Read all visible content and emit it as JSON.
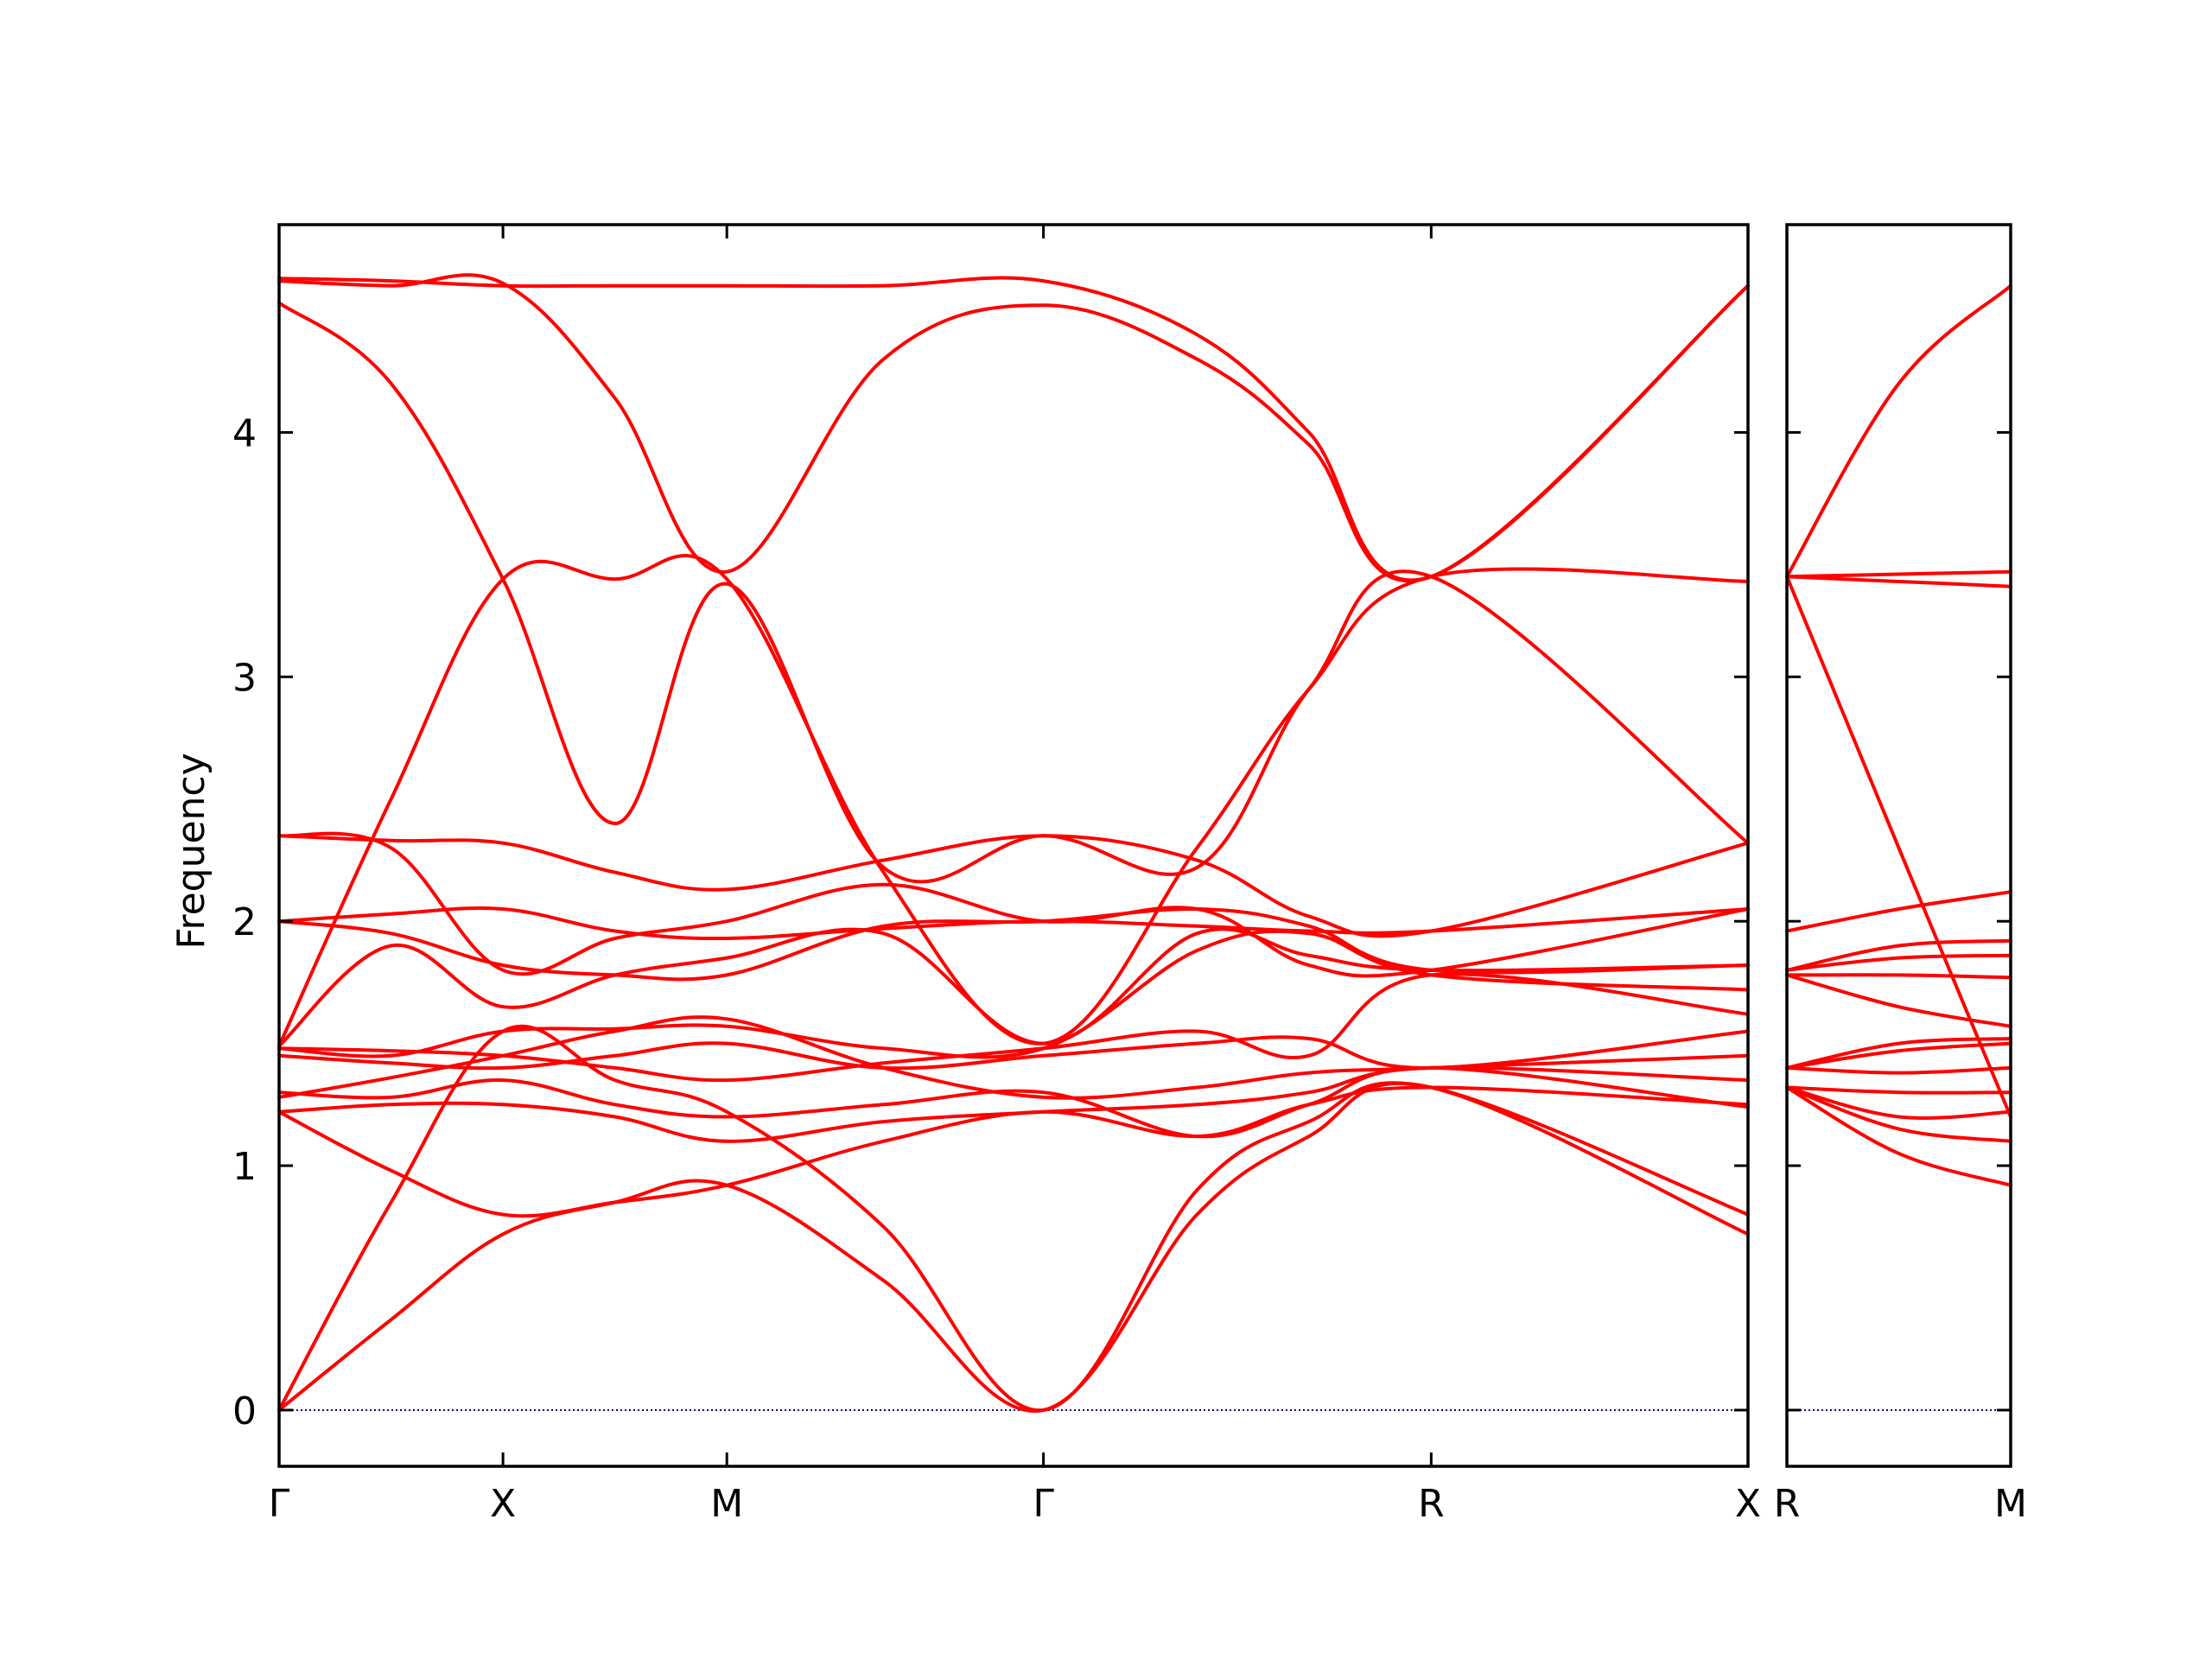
{
  "chart_data": {
    "type": "line",
    "ylabel": "Frequency",
    "ylim": [
      -0.23,
      4.85
    ],
    "yticks": [
      {
        "value": 0,
        "label": "0"
      },
      {
        "value": 1,
        "label": "1"
      },
      {
        "value": 2,
        "label": "2"
      },
      {
        "value": 3,
        "label": "3"
      },
      {
        "value": 4,
        "label": "4"
      }
    ],
    "line_color": "#ff0000",
    "zero_line_color": "#00008b",
    "segments": [
      {
        "labels": [
          "Γ",
          "X",
          "M",
          "Γ",
          "R"
        ],
        "end_label": "X",
        "positions": [
          0,
          1,
          2,
          3.414,
          5.146,
          6.561
        ],
        "branch_labels": {
          "x_label_in_panel": "Γ"
        }
      },
      {
        "labels": [
          "R"
        ],
        "end_label": "M",
        "positions": [
          0,
          1
        ]
      }
    ],
    "panels": [
      {
        "name": "main-panel",
        "x_points": [
          0,
          1,
          2,
          3.414,
          5.146,
          6.561
        ],
        "x_tick_labels": [
          "Γ",
          "X",
          "M",
          "Γ",
          "R",
          "X"
        ],
        "bands": [
          [
            [
              0,
              0
            ],
            [
              0.5,
              0.37
            ],
            [
              1,
              0.72
            ],
            [
              1.5,
              0.85
            ],
            [
              2,
              0.92
            ],
            [
              2.7,
              0.53
            ],
            [
              3.414,
              0
            ],
            [
              4.1,
              0.8
            ],
            [
              4.6,
              1.12
            ],
            [
              5.146,
              1.32
            ],
            [
              6.561,
              0.72
            ]
          ],
          [
            [
              0,
              0
            ],
            [
              0.5,
              0.85
            ],
            [
              1,
              1.55
            ],
            [
              1.5,
              1.35
            ],
            [
              2,
              1.22
            ],
            [
              2.7,
              0.75
            ],
            [
              3.414,
              0
            ],
            [
              4.1,
              0.9
            ],
            [
              4.6,
              1.18
            ],
            [
              5.146,
              1.32
            ],
            [
              6.561,
              0.8
            ]
          ],
          [
            [
              0,
              1.22
            ],
            [
              0.5,
              0.98
            ],
            [
              1,
              0.8
            ],
            [
              1.5,
              0.85
            ],
            [
              2,
              0.92
            ],
            [
              2.7,
              1.1
            ],
            [
              3.414,
              1.22
            ],
            [
              4.1,
              1.12
            ],
            [
              4.6,
              1.25
            ],
            [
              5.146,
              1.32
            ],
            [
              6.561,
              1.25
            ]
          ],
          [
            [
              0,
              1.22
            ],
            [
              0.5,
              1.25
            ],
            [
              1,
              1.25
            ],
            [
              1.5,
              1.2
            ],
            [
              2,
              1.1
            ],
            [
              2.7,
              1.18
            ],
            [
              3.414,
              1.22
            ],
            [
              4.1,
              1.25
            ],
            [
              4.6,
              1.3
            ],
            [
              5.146,
              1.4
            ],
            [
              6.561,
              1.35
            ]
          ],
          [
            [
              0,
              1.28
            ],
            [
              0.5,
              1.36
            ],
            [
              1,
              1.45
            ],
            [
              1.5,
              1.55
            ],
            [
              2,
              1.6
            ],
            [
              2.7,
              1.4
            ],
            [
              3.414,
              1.28
            ],
            [
              4.1,
              1.32
            ],
            [
              4.6,
              1.38
            ],
            [
              5.146,
              1.4
            ],
            [
              6.561,
              1.45
            ]
          ],
          [
            [
              0,
              1.3
            ],
            [
              0.5,
              1.28
            ],
            [
              1,
              1.35
            ],
            [
              1.5,
              1.25
            ],
            [
              2,
              1.2
            ],
            [
              2.7,
              1.25
            ],
            [
              3.414,
              1.3
            ],
            [
              4.1,
              1.12
            ],
            [
              4.6,
              1.25
            ],
            [
              5.146,
              1.4
            ],
            [
              6.561,
              1.24
            ]
          ],
          [
            [
              0,
              1.45
            ],
            [
              0.5,
              1.42
            ],
            [
              1,
              1.4
            ],
            [
              1.5,
              1.45
            ],
            [
              2,
              1.5
            ],
            [
              2.7,
              1.4
            ],
            [
              3.414,
              1.45
            ],
            [
              4.1,
              1.5
            ],
            [
              4.6,
              1.52
            ],
            [
              5.146,
              1.4
            ],
            [
              6.561,
              1.55
            ]
          ],
          [
            [
              0,
              1.48
            ],
            [
              0.5,
              1.47
            ],
            [
              1,
              1.45
            ],
            [
              1.5,
              1.4
            ],
            [
              2,
              1.35
            ],
            [
              2.7,
              1.42
            ],
            [
              3.414,
              1.48
            ],
            [
              4.1,
              1.55
            ],
            [
              4.6,
              1.45
            ],
            [
              5.146,
              1.78
            ],
            [
              6.561,
              1.62
            ]
          ],
          [
            [
              0,
              1.48
            ],
            [
              0.5,
              1.45
            ],
            [
              1,
              1.55
            ],
            [
              1.5,
              1.56
            ],
            [
              2,
              1.57
            ],
            [
              2.7,
              1.48
            ],
            [
              3.414,
              1.48
            ],
            [
              4.1,
              1.88
            ],
            [
              4.6,
              1.95
            ],
            [
              5.146,
              1.78
            ],
            [
              6.561,
              1.72
            ]
          ],
          [
            [
              0,
              1.49
            ],
            [
              0.5,
              1.9
            ],
            [
              1,
              1.65
            ],
            [
              1.5,
              1.78
            ],
            [
              2,
              1.85
            ],
            [
              2.7,
              1.95
            ],
            [
              3.414,
              1.5
            ],
            [
              4.1,
              1.95
            ],
            [
              4.6,
              1.86
            ],
            [
              5.146,
              1.8
            ],
            [
              6.561,
              1.82
            ]
          ],
          [
            [
              0,
              2.0
            ],
            [
              0.5,
              1.95
            ],
            [
              1,
              1.82
            ],
            [
              1.5,
              1.78
            ],
            [
              2,
              1.78
            ],
            [
              2.7,
              1.98
            ],
            [
              3.414,
              2.0
            ],
            [
              4.1,
              2.05
            ],
            [
              4.6,
              1.98
            ],
            [
              5.146,
              1.8
            ],
            [
              6.561,
              1.82
            ]
          ],
          [
            [
              0,
              2.0
            ],
            [
              0.5,
              2.03
            ],
            [
              1,
              2.05
            ],
            [
              1.5,
              1.96
            ],
            [
              2,
              1.93
            ],
            [
              2.7,
              1.97
            ],
            [
              3.414,
              2.0
            ],
            [
              4.1,
              1.98
            ],
            [
              4.6,
              1.96
            ],
            [
              5.146,
              1.96
            ],
            [
              6.561,
              2.05
            ]
          ],
          [
            [
              0,
              2.35
            ],
            [
              0.5,
              2.3
            ],
            [
              1,
              1.8
            ],
            [
              1.5,
              1.93
            ],
            [
              2,
              2.0
            ],
            [
              2.7,
              2.15
            ],
            [
              3.414,
              2.0
            ],
            [
              4.1,
              2.05
            ],
            [
              4.6,
              1.82
            ],
            [
              5.146,
              1.8
            ],
            [
              6.561,
              2.05
            ]
          ],
          [
            [
              0,
              2.35
            ],
            [
              0.5,
              2.33
            ],
            [
              1,
              2.32
            ],
            [
              1.5,
              2.2
            ],
            [
              2,
              2.13
            ],
            [
              2.7,
              2.25
            ],
            [
              3.414,
              2.35
            ],
            [
              4.1,
              2.25
            ],
            [
              4.6,
              2.02
            ],
            [
              5.146,
              1.96
            ],
            [
              6.561,
              2.32
            ]
          ],
          [
            [
              0,
              1.49
            ],
            [
              0.5,
              2.5
            ],
            [
              1,
              3.4
            ],
            [
              1.5,
              3.4
            ],
            [
              2,
              3.4
            ],
            [
              2.7,
              2.2
            ],
            [
              3.414,
              1.5
            ],
            [
              4.1,
              2.3
            ],
            [
              4.6,
              2.95
            ],
            [
              5.146,
              3.41
            ],
            [
              6.561,
              3.39
            ]
          ],
          [
            [
              0,
              4.53
            ],
            [
              0.5,
              4.2
            ],
            [
              1,
              3.4
            ],
            [
              1.5,
              2.4
            ],
            [
              2,
              3.38
            ],
            [
              2.7,
              2.22
            ],
            [
              3.414,
              2.35
            ],
            [
              4.1,
              2.22
            ],
            [
              4.6,
              2.95
            ],
            [
              5.146,
              3.41
            ],
            [
              6.561,
              2.32
            ]
          ],
          [
            [
              0,
              4.62
            ],
            [
              0.5,
              4.6
            ],
            [
              1,
              4.61
            ],
            [
              1.5,
              4.14
            ],
            [
              2,
              3.43
            ],
            [
              2.7,
              4.3
            ],
            [
              3.414,
              4.52
            ],
            [
              4.1,
              4.3
            ],
            [
              4.6,
              3.95
            ],
            [
              5.146,
              3.41
            ],
            [
              6.561,
              4.6
            ]
          ],
          [
            [
              0,
              4.63
            ],
            [
              0.5,
              4.62
            ],
            [
              1,
              4.6
            ],
            [
              1.5,
              4.6
            ],
            [
              2,
              4.6
            ],
            [
              2.7,
              4.6
            ],
            [
              3.414,
              4.62
            ],
            [
              4.1,
              4.4
            ],
            [
              4.6,
              4.0
            ],
            [
              5.146,
              3.41
            ],
            [
              6.561,
              4.6
            ]
          ]
        ]
      },
      {
        "name": "side-panel",
        "x_points": [
          0,
          1
        ],
        "x_tick_labels": [
          "R",
          "M"
        ],
        "bands": [
          [
            [
              0,
              1.32
            ],
            [
              0.5,
              1.05
            ],
            [
              1,
              0.92
            ]
          ],
          [
            [
              0,
              1.32
            ],
            [
              0.5,
              1.15
            ],
            [
              1,
              1.1
            ]
          ],
          [
            [
              0,
              1.32
            ],
            [
              0.5,
              1.2
            ],
            [
              1,
              1.22
            ]
          ],
          [
            [
              0,
              1.32
            ],
            [
              0.5,
              1.3
            ],
            [
              1,
              1.3
            ]
          ],
          [
            [
              0,
              1.4
            ],
            [
              0.5,
              1.38
            ],
            [
              1,
              1.4
            ]
          ],
          [
            [
              0,
              1.4
            ],
            [
              0.5,
              1.47
            ],
            [
              1,
              1.5
            ]
          ],
          [
            [
              0,
              1.4
            ],
            [
              0.5,
              1.5
            ],
            [
              1,
              1.52
            ]
          ],
          [
            [
              0,
              1.78
            ],
            [
              0.5,
              1.65
            ],
            [
              1,
              1.57
            ]
          ],
          [
            [
              0,
              1.78
            ],
            [
              0.5,
              1.78
            ],
            [
              1,
              1.77
            ]
          ],
          [
            [
              0,
              1.8
            ],
            [
              0.5,
              1.85
            ],
            [
              1,
              1.86
            ]
          ],
          [
            [
              0,
              1.8
            ],
            [
              0.5,
              1.9
            ],
            [
              1,
              1.92
            ]
          ],
          [
            [
              0,
              1.96
            ],
            [
              0.5,
              2.05
            ],
            [
              1,
              2.12
            ]
          ],
          [
            [
              0,
              3.41
            ],
            [
              0.5,
              2.3
            ],
            [
              1,
              1.2
            ]
          ],
          [
            [
              0,
              3.41
            ],
            [
              0.5,
              3.39
            ],
            [
              1,
              3.37
            ]
          ],
          [
            [
              0,
              3.41
            ],
            [
              0.5,
              3.42
            ],
            [
              1,
              3.43
            ]
          ],
          [
            [
              0,
              3.41
            ],
            [
              0.5,
              4.2
            ],
            [
              1,
              4.6
            ]
          ]
        ]
      }
    ]
  }
}
